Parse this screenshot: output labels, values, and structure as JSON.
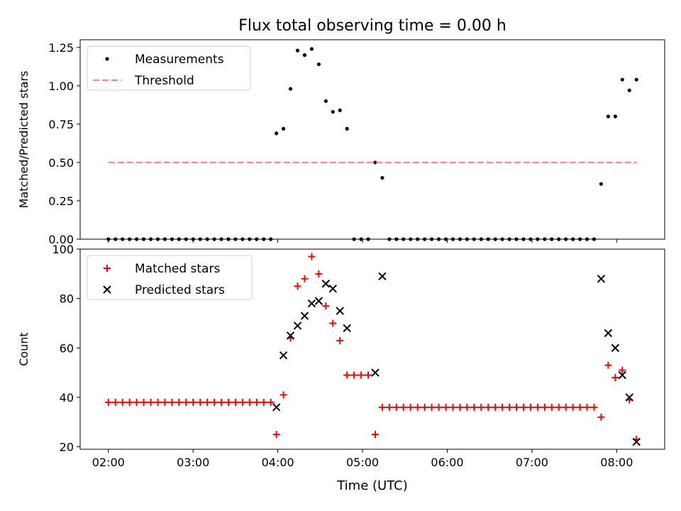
{
  "figure": {
    "title": "Flux total observing time = 0.00 h",
    "xlabel": "Time (UTC)"
  },
  "colors": {
    "measurement": "#000000",
    "threshold": "#ff7f7f",
    "matched": "#ff0000",
    "predicted": "#000000"
  },
  "chart_data": [
    {
      "type": "scatter",
      "ylabel": "Matched/Predicted stars",
      "xlim": [
        "01:40",
        "08:34"
      ],
      "ylim": [
        0,
        1.3
      ],
      "yticks": [
        "0.00",
        "0.25",
        "0.50",
        "0.75",
        "1.00",
        "1.25"
      ],
      "x_axis": "shared",
      "legend": {
        "placement": "top-left",
        "entries": [
          "Measurements",
          "Threshold"
        ]
      },
      "series": [
        {
          "name": "Measurements",
          "marker": "dot",
          "points": [
            [
              "02:00",
              0
            ],
            [
              "02:05",
              0
            ],
            [
              "02:10",
              0
            ],
            [
              "02:15",
              0
            ],
            [
              "02:20",
              0
            ],
            [
              "02:25",
              0
            ],
            [
              "02:30",
              0
            ],
            [
              "02:35",
              0
            ],
            [
              "02:40",
              0
            ],
            [
              "02:45",
              0
            ],
            [
              "02:50",
              0
            ],
            [
              "02:55",
              0
            ],
            [
              "03:00",
              0
            ],
            [
              "03:05",
              0
            ],
            [
              "03:10",
              0
            ],
            [
              "03:15",
              0
            ],
            [
              "03:20",
              0
            ],
            [
              "03:25",
              0
            ],
            [
              "03:30",
              0
            ],
            [
              "03:35",
              0
            ],
            [
              "03:40",
              0
            ],
            [
              "03:45",
              0
            ],
            [
              "03:50",
              0
            ],
            [
              "03:55",
              0
            ],
            [
              "03:59",
              0.69
            ],
            [
              "04:04",
              0.72
            ],
            [
              "04:09",
              0.98
            ],
            [
              "04:14",
              1.23
            ],
            [
              "04:19",
              1.2
            ],
            [
              "04:24",
              1.24
            ],
            [
              "04:29",
              1.14
            ],
            [
              "04:34",
              0.9
            ],
            [
              "04:39",
              0.83
            ],
            [
              "04:44",
              0.84
            ],
            [
              "04:49",
              0.72
            ],
            [
              "04:54",
              0
            ],
            [
              "04:59",
              0
            ],
            [
              "05:04",
              0
            ],
            [
              "05:09",
              0.5
            ],
            [
              "05:14",
              0.4
            ],
            [
              "05:19",
              0
            ],
            [
              "05:24",
              0
            ],
            [
              "05:29",
              0
            ],
            [
              "05:34",
              0
            ],
            [
              "05:39",
              0
            ],
            [
              "05:44",
              0
            ],
            [
              "05:49",
              0
            ],
            [
              "05:54",
              0
            ],
            [
              "05:59",
              0
            ],
            [
              "06:04",
              0
            ],
            [
              "06:09",
              0
            ],
            [
              "06:14",
              0
            ],
            [
              "06:19",
              0
            ],
            [
              "06:24",
              0
            ],
            [
              "06:29",
              0
            ],
            [
              "06:34",
              0
            ],
            [
              "06:39",
              0
            ],
            [
              "06:44",
              0
            ],
            [
              "06:49",
              0
            ],
            [
              "06:54",
              0
            ],
            [
              "06:59",
              0
            ],
            [
              "07:04",
              0
            ],
            [
              "07:09",
              0
            ],
            [
              "07:14",
              0
            ],
            [
              "07:19",
              0
            ],
            [
              "07:24",
              0
            ],
            [
              "07:29",
              0
            ],
            [
              "07:34",
              0
            ],
            [
              "07:39",
              0
            ],
            [
              "07:44",
              0
            ],
            [
              "07:49",
              0.36
            ],
            [
              "07:54",
              0.8
            ],
            [
              "07:59",
              0.8
            ],
            [
              "08:04",
              1.04
            ],
            [
              "08:09",
              0.97
            ],
            [
              "08:14",
              1.04
            ]
          ]
        },
        {
          "name": "Threshold",
          "style": "dashed-line",
          "points": [
            [
              "02:00",
              0.5
            ],
            [
              "08:14",
              0.5
            ]
          ]
        }
      ]
    },
    {
      "type": "scatter",
      "ylabel": "Count",
      "xlim": [
        "01:40",
        "08:34"
      ],
      "ylim": [
        19,
        100
      ],
      "yticks": [
        "20",
        "40",
        "60",
        "80",
        "100"
      ],
      "xticks": [
        "02:00",
        "03:00",
        "04:00",
        "05:00",
        "06:00",
        "07:00",
        "08:00"
      ],
      "legend": {
        "placement": "top-left",
        "entries": [
          "Matched stars",
          "Predicted stars"
        ]
      },
      "series": [
        {
          "name": "Matched stars",
          "marker": "plus",
          "points": [
            [
              "02:00",
              38
            ],
            [
              "02:05",
              38
            ],
            [
              "02:10",
              38
            ],
            [
              "02:15",
              38
            ],
            [
              "02:20",
              38
            ],
            [
              "02:25",
              38
            ],
            [
              "02:30",
              38
            ],
            [
              "02:35",
              38
            ],
            [
              "02:40",
              38
            ],
            [
              "02:45",
              38
            ],
            [
              "02:50",
              38
            ],
            [
              "02:55",
              38
            ],
            [
              "03:00",
              38
            ],
            [
              "03:05",
              38
            ],
            [
              "03:10",
              38
            ],
            [
              "03:15",
              38
            ],
            [
              "03:20",
              38
            ],
            [
              "03:25",
              38
            ],
            [
              "03:30",
              38
            ],
            [
              "03:35",
              38
            ],
            [
              "03:40",
              38
            ],
            [
              "03:45",
              38
            ],
            [
              "03:50",
              38
            ],
            [
              "03:55",
              38
            ],
            [
              "03:59",
              25
            ],
            [
              "04:04",
              41
            ],
            [
              "04:09",
              64
            ],
            [
              "04:14",
              85
            ],
            [
              "04:19",
              88
            ],
            [
              "04:24",
              97
            ],
            [
              "04:29",
              90
            ],
            [
              "04:34",
              77
            ],
            [
              "04:39",
              70
            ],
            [
              "04:44",
              63
            ],
            [
              "04:49",
              49
            ],
            [
              "04:54",
              49
            ],
            [
              "04:59",
              49
            ],
            [
              "05:04",
              49
            ],
            [
              "05:09",
              25
            ],
            [
              "05:14",
              36
            ],
            [
              "05:19",
              36
            ],
            [
              "05:24",
              36
            ],
            [
              "05:29",
              36
            ],
            [
              "05:34",
              36
            ],
            [
              "05:39",
              36
            ],
            [
              "05:44",
              36
            ],
            [
              "05:49",
              36
            ],
            [
              "05:54",
              36
            ],
            [
              "05:59",
              36
            ],
            [
              "06:04",
              36
            ],
            [
              "06:09",
              36
            ],
            [
              "06:14",
              36
            ],
            [
              "06:19",
              36
            ],
            [
              "06:24",
              36
            ],
            [
              "06:29",
              36
            ],
            [
              "06:34",
              36
            ],
            [
              "06:39",
              36
            ],
            [
              "06:44",
              36
            ],
            [
              "06:49",
              36
            ],
            [
              "06:54",
              36
            ],
            [
              "06:59",
              36
            ],
            [
              "07:04",
              36
            ],
            [
              "07:09",
              36
            ],
            [
              "07:14",
              36
            ],
            [
              "07:19",
              36
            ],
            [
              "07:24",
              36
            ],
            [
              "07:29",
              36
            ],
            [
              "07:34",
              36
            ],
            [
              "07:39",
              36
            ],
            [
              "07:44",
              36
            ],
            [
              "07:49",
              32
            ],
            [
              "07:54",
              53
            ],
            [
              "07:59",
              48
            ],
            [
              "08:04",
              51
            ],
            [
              "08:09",
              39
            ],
            [
              "08:14",
              23
            ]
          ]
        },
        {
          "name": "Predicted stars",
          "marker": "x",
          "points": [
            [
              "03:59",
              36
            ],
            [
              "04:04",
              57
            ],
            [
              "04:09",
              65
            ],
            [
              "04:14",
              69
            ],
            [
              "04:19",
              73
            ],
            [
              "04:24",
              78
            ],
            [
              "04:29",
              79
            ],
            [
              "04:34",
              86
            ],
            [
              "04:39",
              84
            ],
            [
              "04:44",
              75
            ],
            [
              "04:49",
              68
            ],
            [
              "05:09",
              50
            ],
            [
              "05:14",
              89
            ],
            [
              "07:49",
              88
            ],
            [
              "07:54",
              66
            ],
            [
              "07:59",
              60
            ],
            [
              "08:04",
              49
            ],
            [
              "08:09",
              40
            ],
            [
              "08:14",
              22
            ]
          ]
        }
      ]
    }
  ]
}
